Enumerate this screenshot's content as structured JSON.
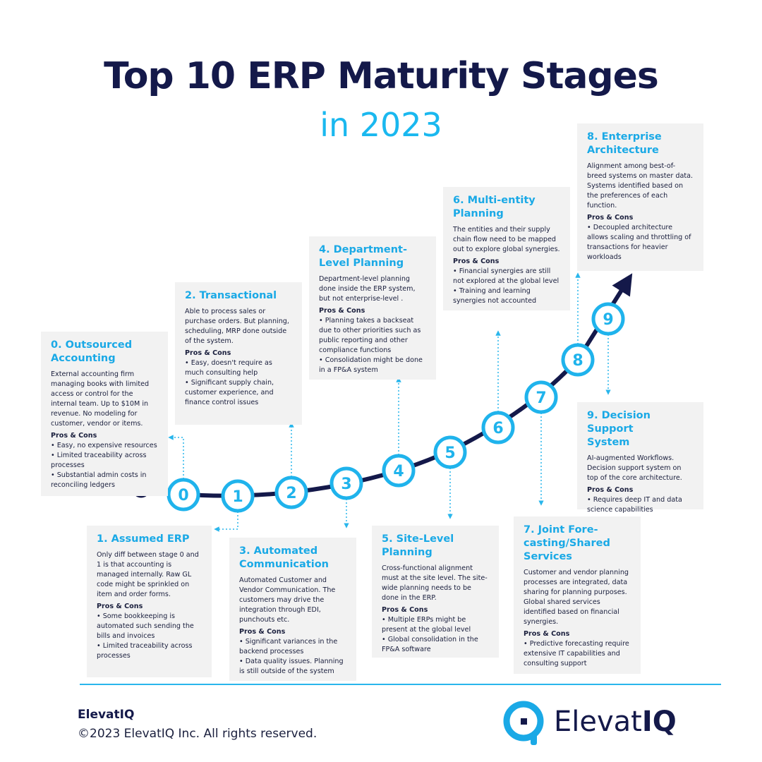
{
  "header": {
    "title": "Top 10 ERP Maturity Stages",
    "subtitle": "in 2023"
  },
  "stages": [
    {
      "number": "0",
      "title_lines": [
        "0. Outsourced",
        "Accounting"
      ],
      "description": "External accounting firm managing books with limited access or control for the internal team. Up to $10M in revenue. No modeling for customer, vendor or items.",
      "pros_cons_label": "Pros & Cons",
      "bullets": [
        "• Easy, no expensive resources",
        "• Limited traceability across processes",
        "• Substantial admin costs in reconciling ledgers"
      ]
    },
    {
      "number": "1",
      "title_lines": [
        "1. Assumed ERP"
      ],
      "description": "Only diff between stage 0 and 1 is that accounting is managed internally. Raw GL code might be sprinkled on item and order forms.",
      "pros_cons_label": "Pros & Cons",
      "bullets": [
        "• Some bookkeeping is automated such sending the bills and invoices",
        "• Limited traceability across processes"
      ]
    },
    {
      "number": "2",
      "title_lines": [
        "2. Transactional"
      ],
      "description": "Able to process sales or purchase orders. But planning, scheduling, MRP done outside of the system.",
      "pros_cons_label": "Pros & Cons",
      "bullets": [
        "• Easy, doesn't require as much consulting help",
        "• Significant supply chain, customer experience, and finance control issues"
      ]
    },
    {
      "number": "3",
      "title_lines": [
        "3. Automated",
        "Communication"
      ],
      "description": "Automated Customer and Vendor Communication. The customers may drive the integration through EDI, punchouts etc.",
      "pros_cons_label": "Pros & Cons",
      "bullets": [
        "• Significant variances in the backend processes",
        "• Data quality issues. Planning is still outside of the system"
      ]
    },
    {
      "number": "4",
      "title_lines": [
        "4. Department-",
        "Level Planning"
      ],
      "description": "Department-level planning done inside the ERP system, but not enterprise-level .",
      "pros_cons_label": "Pros & Cons",
      "bullets": [
        "• Planning takes a backseat due to other priorities such as public reporting and other compliance functions",
        "• Consolidation might be done in a FP&A system"
      ]
    },
    {
      "number": "5",
      "title_lines": [
        "5. Site-Level",
        "Planning"
      ],
      "description": "Cross-functional alignment must at the site level. The site-wide planning needs to be done in the ERP.",
      "pros_cons_label": "Pros & Cons",
      "bullets": [
        "• Multiple ERPs might be present at the global level",
        "• Global consolidation in the FP&A software"
      ]
    },
    {
      "number": "6",
      "title_lines": [
        "6. Multi-entity",
        "Planning"
      ],
      "description": "The entities and their supply chain flow need to be mapped out to explore global synergies.",
      "pros_cons_label": "Pros & Cons",
      "bullets": [
        "• Financial synergies are still not explored at the global level",
        "• Training and learning synergies not accounted"
      ]
    },
    {
      "number": "7",
      "title_lines": [
        "7. Joint Fore-",
        "casting/Shared",
        "Services"
      ],
      "description": "Customer and vendor planning processes are integrated, data sharing for planning purposes. Global shared services identified based on financial synergies.",
      "pros_cons_label": "Pros & Cons",
      "bullets": [
        "• Predictive forecasting require extensive IT capabilities and consulting support"
      ]
    },
    {
      "number": "8",
      "title_lines": [
        "8. Enterprise",
        "Architecture"
      ],
      "description": "Alignment among best-of-breed systems on master data. Systems identified based on the preferences of each function.",
      "pros_cons_label": "Pros & Cons",
      "bullets": [
        "• Decoupled architecture allows scaling and throttling of transactions for heavier workloads"
      ]
    },
    {
      "number": "9",
      "title_lines": [
        "9. Decision Support",
        "System"
      ],
      "description": "AI-augmented Workflows. Decision support system on top of the core architecture.",
      "pros_cons_label": "Pros & Cons",
      "bullets": [
        "• Requires deep IT and data science capabilities"
      ]
    }
  ],
  "footer": {
    "company": "ElevatIQ",
    "copyright": "©2023 ElevatIQ Inc. All rights reserved.",
    "logo_regular": "Elevat",
    "logo_bold": "IQ"
  }
}
